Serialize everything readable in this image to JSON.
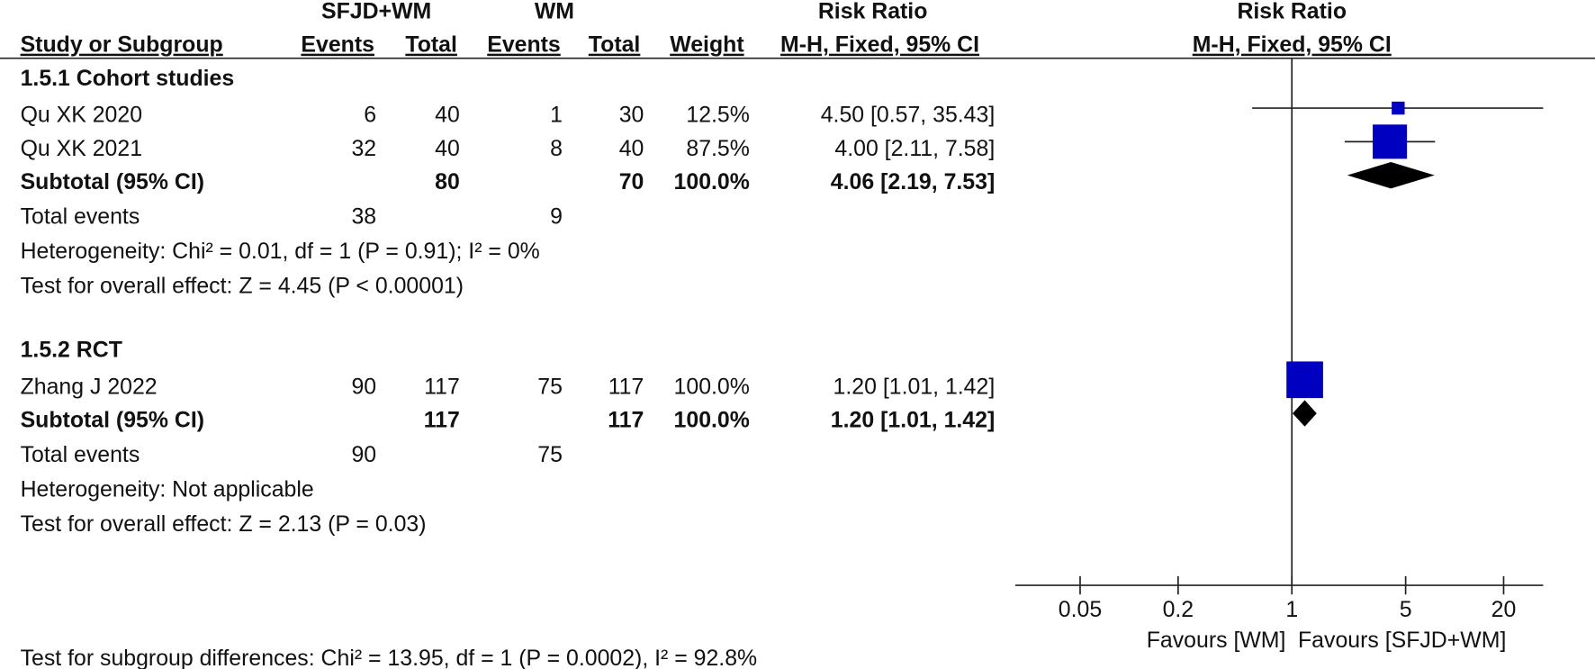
{
  "chart_data": {
    "type": "forest",
    "group_headers": [
      "SFJD+WM",
      "WM",
      "Risk Ratio",
      "Risk Ratio"
    ],
    "columns": [
      "Study or Subgroup",
      "Events",
      "Total",
      "Events",
      "Total",
      "Weight",
      "M-H, Fixed, 95% CI",
      "M-H, Fixed, 95% CI"
    ],
    "subgroups": [
      {
        "name": "1.5.1 Cohort studies",
        "studies": [
          {
            "name": "Qu XK 2020",
            "events1": 6,
            "total1": 40,
            "events2": 1,
            "total2": 30,
            "weight": 12.5,
            "weight_label": "12.5%",
            "rr": 4.5,
            "ci": [
              0.57,
              35.43
            ],
            "rr_label": "4.50 [0.57, 35.43]"
          },
          {
            "name": "Qu XK 2021",
            "events1": 32,
            "total1": 40,
            "events2": 8,
            "total2": 40,
            "weight": 87.5,
            "weight_label": "87.5%",
            "rr": 4.0,
            "ci": [
              2.11,
              7.58
            ],
            "rr_label": "4.00 [2.11, 7.58]"
          }
        ],
        "subtotal": {
          "name": "Subtotal (95% CI)",
          "total1": 80,
          "total2": 70,
          "weight": 100.0,
          "weight_label": "100.0%",
          "rr": 4.06,
          "ci": [
            2.19,
            7.53
          ],
          "rr_label": "4.06 [2.19, 7.53]"
        },
        "total_events": {
          "name": "Total events",
          "events1": 38,
          "events2": 9
        },
        "heterogeneity": "Heterogeneity: Chi² = 0.01, df = 1 (P = 0.91); I² = 0%",
        "overall_effect": "Test for overall effect: Z = 4.45 (P < 0.00001)"
      },
      {
        "name": "1.5.2 RCT",
        "studies": [
          {
            "name": "Zhang J 2022",
            "events1": 90,
            "total1": 117,
            "events2": 75,
            "total2": 117,
            "weight": 100.0,
            "weight_label": "100.0%",
            "rr": 1.2,
            "ci": [
              1.01,
              1.42
            ],
            "rr_label": "1.20 [1.01, 1.42]"
          }
        ],
        "subtotal": {
          "name": "Subtotal (95% CI)",
          "total1": 117,
          "total2": 117,
          "weight": 100.0,
          "weight_label": "100.0%",
          "rr": 1.2,
          "ci": [
            1.01,
            1.42
          ],
          "rr_label": "1.20 [1.01, 1.42]"
        },
        "total_events": {
          "name": "Total events",
          "events1": 90,
          "events2": 75
        },
        "heterogeneity": "Heterogeneity: Not applicable",
        "overall_effect": "Test for overall effect: Z = 2.13 (P = 0.03)"
      }
    ],
    "subgroup_test": "Test for subgroup differences: Chi² = 13.95, df = 1 (P = 0.0002), I² = 92.8%",
    "log_x": true,
    "xlim": [
      0.02,
      35
    ],
    "xticks": [
      0.05,
      0.2,
      1,
      5,
      20
    ],
    "favours": [
      "Favours [WM]",
      "Favours [SFJD+WM]"
    ],
    "study_color": "#0000c0",
    "pooled_color": "#000000"
  }
}
